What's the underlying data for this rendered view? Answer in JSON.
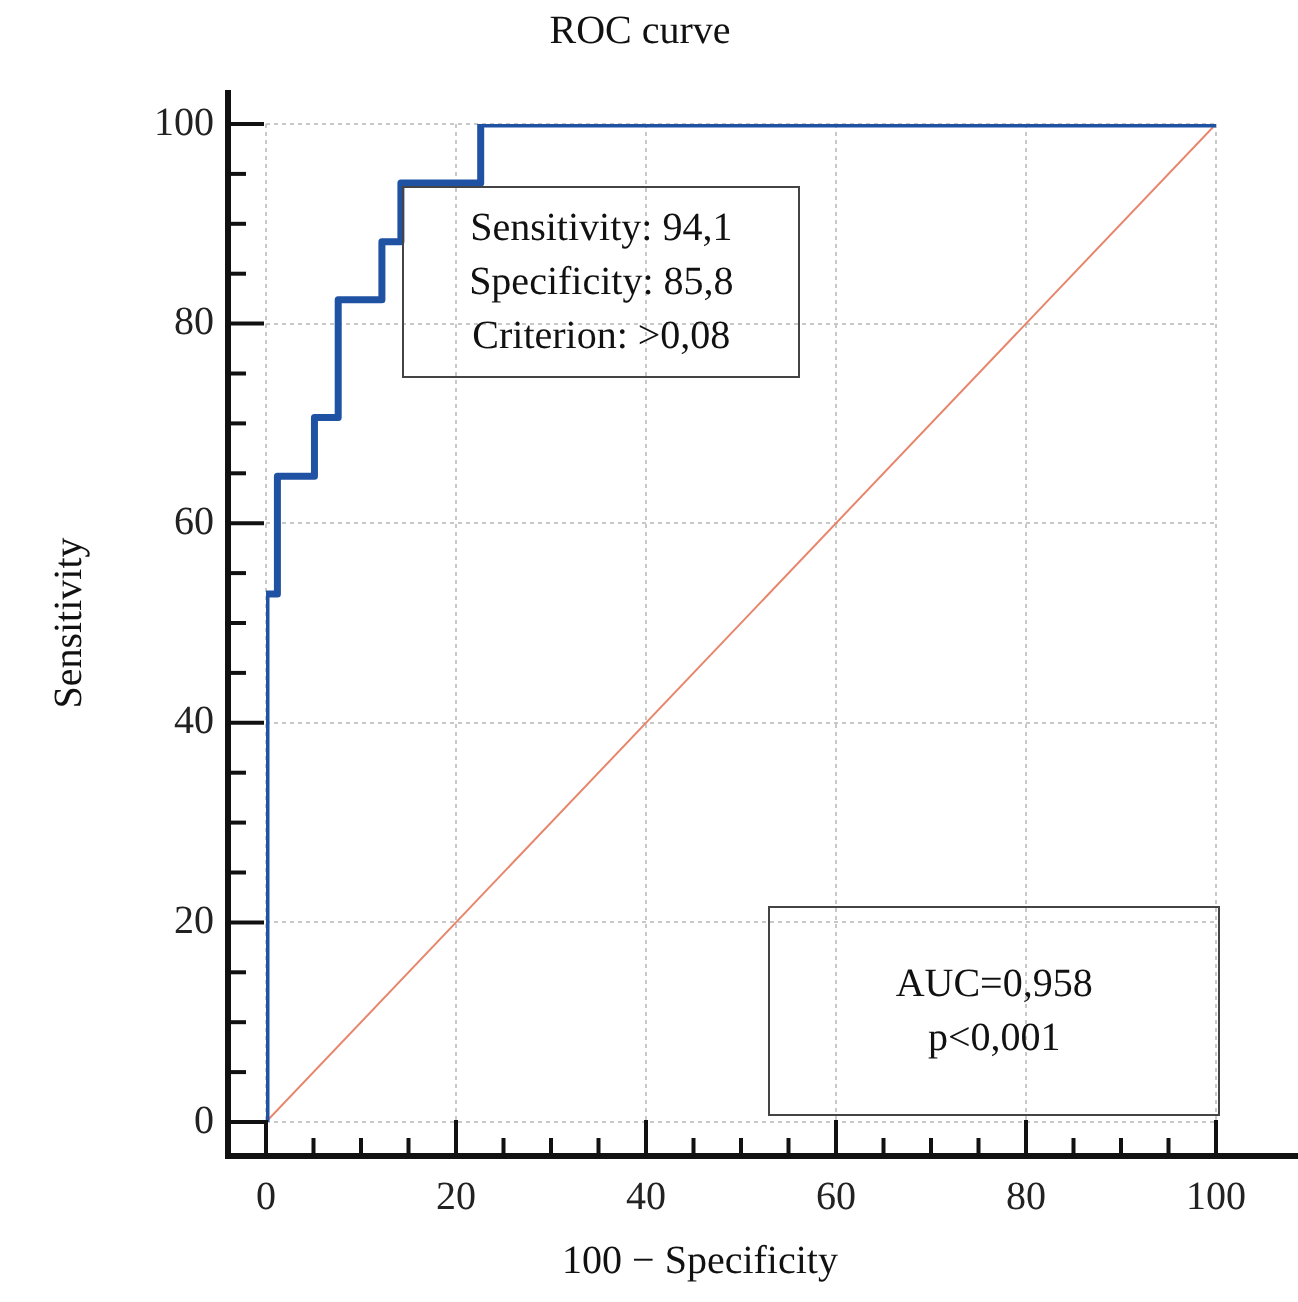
{
  "chart_data": {
    "type": "line",
    "title": "ROC curve",
    "xlabel": "100 − Specificity",
    "ylabel": "Sensitivity",
    "xlim": [
      0,
      100
    ],
    "ylim": [
      0,
      100
    ],
    "xticks": [
      0,
      {
        "value": 5,
        "label": null
      },
      {
        "value": 10,
        "label": null
      },
      {
        "value": 15,
        "label": null
      },
      20,
      {
        "value": 25,
        "label": null
      },
      {
        "value": 30,
        "label": null
      },
      {
        "value": 35,
        "label": null
      },
      40,
      {
        "value": 45,
        "label": null
      },
      {
        "value": 50,
        "label": null
      },
      {
        "value": 55,
        "label": null
      },
      60,
      {
        "value": 65,
        "label": null
      },
      {
        "value": 70,
        "label": null
      },
      {
        "value": 75,
        "label": null
      },
      80,
      {
        "value": 85,
        "label": null
      },
      {
        "value": 90,
        "label": null
      },
      {
        "value": 95,
        "label": null
      },
      100
    ],
    "yticks": [
      0,
      {
        "value": 5,
        "label": null
      },
      {
        "value": 10,
        "label": null
      },
      {
        "value": 15,
        "label": null
      },
      20,
      {
        "value": 25,
        "label": null
      },
      {
        "value": 30,
        "label": null
      },
      {
        "value": 35,
        "label": null
      },
      40,
      {
        "value": 45,
        "label": null
      },
      {
        "value": 50,
        "label": null
      },
      {
        "value": 55,
        "label": null
      },
      60,
      {
        "value": 65,
        "label": null
      },
      {
        "value": 70,
        "label": null
      },
      {
        "value": 75,
        "label": null
      },
      80,
      {
        "value": 85,
        "label": null
      },
      {
        "value": 90,
        "label": null
      },
      {
        "value": 95,
        "label": null
      },
      100
    ],
    "grid": true,
    "legend": false,
    "marker": "none",
    "line_style": "solid",
    "series": [
      {
        "color": "#1f52a3",
        "x": [
          0,
          0,
          1.2,
          1.2,
          5.1,
          5.1,
          7.6,
          7.6,
          12.2,
          12.2,
          14.2,
          14.2,
          22.6,
          22.6,
          100
        ],
        "values": [
          0,
          52.9,
          52.9,
          64.7,
          64.7,
          70.6,
          70.6,
          82.4,
          82.4,
          88.2,
          88.2,
          94.1,
          94.1,
          100,
          100
        ]
      },
      {
        "color": "#e8866c",
        "x": [
          0,
          100
        ],
        "values": [
          0,
          100
        ]
      }
    ],
    "annotations": [
      "Sensitivity: 94,1\nSpecificity: 85,8\nCriterion: >0,08",
      "AUC=0,958\np<0,001"
    ]
  }
}
